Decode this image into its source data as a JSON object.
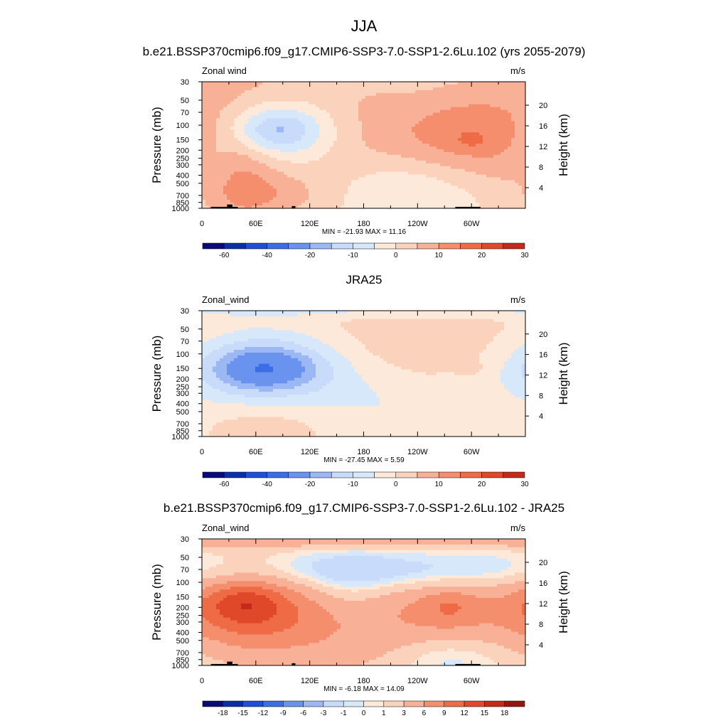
{
  "figure": {
    "title": "JJA",
    "season": "JJA"
  },
  "colors": {
    "blues": [
      "#0a0a7a",
      "#0c2fa8",
      "#1f4fd6",
      "#3a6de6",
      "#6a93ee",
      "#9bb8f4",
      "#c8dbfa"
    ],
    "pale_blue": "#d8e8fb",
    "pale_orange": "#fde9d9",
    "oranges": [
      "#fbd2bb",
      "#f8b197",
      "#f48e6c",
      "#ee6b45",
      "#e0482a",
      "#c42a1a",
      "#97150d",
      "#6b0a07"
    ],
    "orography": "#000000"
  },
  "chart_data": [
    {
      "type": "heatmap",
      "name": "model",
      "title": "b.e21.BSSP370cmip6.f09_g17.CMIP6-SSP3-7.0-SSP1-2.6Lu.102 (yrs 2055-2079)",
      "left_label": "Zonal wind",
      "units": "m/s",
      "xlabel": "",
      "ylabel": "Pressure (mb)",
      "ylabel_right": "Height (km)",
      "x_ticks": [
        "0",
        "60E",
        "120E",
        "180",
        "120W",
        "60W"
      ],
      "x_tick_lon": [
        0,
        60,
        120,
        180,
        240,
        300
      ],
      "xlim": [
        0,
        360
      ],
      "y_ticks": [
        "30",
        "50",
        "70",
        "100",
        "150",
        "200",
        "250",
        "300",
        "400",
        "500",
        "700",
        "850",
        "1000"
      ],
      "y_tick_p": [
        30,
        50,
        70,
        100,
        150,
        200,
        250,
        300,
        400,
        500,
        700,
        850,
        1000
      ],
      "ylim": [
        1000,
        30
      ],
      "log_pressure_axis": true,
      "height_ticks": [
        "4",
        "8",
        "12",
        "16",
        "20"
      ],
      "height_tick_km": [
        4,
        8,
        12,
        16,
        20
      ],
      "stats_text": "MIN = -21.93  MAX =  11.16",
      "min": -21.93,
      "max": 11.16,
      "colorbar_labels": [
        "-60",
        "-40",
        "-20",
        "-10",
        "0",
        "10",
        "20",
        "30"
      ],
      "colorbar_levels": [
        -70,
        -60,
        -50,
        -40,
        -30,
        -20,
        -15,
        -10,
        -5,
        0,
        5,
        10,
        15,
        20,
        25,
        30
      ],
      "features": [
        {
          "lon": 38,
          "p": 160,
          "dlon": 140,
          "dlogp": 0.55,
          "v": 7
        },
        {
          "lon": 80,
          "p": 115,
          "dlon": 55,
          "dlogp": 0.3,
          "v": -20
        },
        {
          "lon": 80,
          "p": 115,
          "dlon": 30,
          "dlogp": 0.16,
          "v": -8
        },
        {
          "lon": 70,
          "p": 50,
          "dlon": 90,
          "dlogp": 0.5,
          "v": 5
        },
        {
          "lon": 45,
          "p": 420,
          "dlon": 28,
          "dlogp": 0.5,
          "v": 6
        },
        {
          "lon": 80,
          "p": 700,
          "dlon": 45,
          "dlogp": 0.18,
          "v": 5
        },
        {
          "lon": 285,
          "p": 130,
          "dlon": 85,
          "dlogp": 0.35,
          "v": 8
        },
        {
          "lon": 300,
          "p": 150,
          "dlon": 12,
          "dlogp": 0.07,
          "v": 4
        },
        {
          "lon": 230,
          "p": 600,
          "dlon": 65,
          "dlogp": 0.3,
          "v": -7
        },
        {
          "lon": 10,
          "p": 280,
          "dlon": 18,
          "dlogp": 0.2,
          "v": -4
        }
      ],
      "orography": [
        {
          "lon0": 10,
          "lon1": 40,
          "p_top": 960
        },
        {
          "lon0": 28,
          "lon1": 34,
          "p_top": 900
        },
        {
          "lon0": 100,
          "lon1": 104,
          "p_top": 940
        },
        {
          "lon0": 282,
          "lon1": 310,
          "p_top": 960
        }
      ]
    },
    {
      "type": "heatmap",
      "name": "obs",
      "title": "JRA25",
      "left_label": "Zonal_wind",
      "units": "m/s",
      "xlabel": "",
      "ylabel": "Pressure (mb)",
      "ylabel_right": "Height (km)",
      "x_ticks": [
        "0",
        "60E",
        "120E",
        "180",
        "120W",
        "60W"
      ],
      "x_tick_lon": [
        0,
        60,
        120,
        180,
        240,
        300
      ],
      "xlim": [
        0,
        360
      ],
      "y_ticks": [
        "30",
        "50",
        "70",
        "100",
        "150",
        "200",
        "250",
        "300",
        "400",
        "500",
        "700",
        "850",
        "1000"
      ],
      "y_tick_p": [
        30,
        50,
        70,
        100,
        150,
        200,
        250,
        300,
        400,
        500,
        700,
        850,
        1000
      ],
      "ylim": [
        1000,
        30
      ],
      "log_pressure_axis": true,
      "height_ticks": [
        "4",
        "8",
        "12",
        "16",
        "20"
      ],
      "height_tick_km": [
        4,
        8,
        12,
        16,
        20
      ],
      "stats_text": "MIN = -27.45  MAX =   5.59",
      "min": -27.45,
      "max": 5.59,
      "colorbar_labels": [
        "-60",
        "-40",
        "-20",
        "-10",
        "0",
        "10",
        "20",
        "30"
      ],
      "colorbar_levels": [
        -70,
        -60,
        -50,
        -40,
        -30,
        -20,
        -15,
        -10,
        -5,
        0,
        5,
        10,
        15,
        20,
        25,
        30
      ],
      "features": [
        {
          "lon": 180,
          "p": 30,
          "dlon": 400,
          "dlogp": 0.06,
          "v": -6
        },
        {
          "lon": 70,
          "p": 155,
          "dlon": 60,
          "dlogp": 0.3,
          "v": -22
        },
        {
          "lon": 70,
          "p": 150,
          "dlon": 32,
          "dlogp": 0.14,
          "v": -10
        },
        {
          "lon": 240,
          "p": 110,
          "dlon": 90,
          "dlogp": 0.4,
          "v": 5
        },
        {
          "lon": 300,
          "p": 150,
          "dlon": 10,
          "dlogp": 0.06,
          "v": 3
        },
        {
          "lon": 70,
          "p": 600,
          "dlon": 50,
          "dlogp": 0.3,
          "v": 4
        },
        {
          "lon": 250,
          "p": 500,
          "dlon": 80,
          "dlogp": 0.5,
          "v": -4
        },
        {
          "lon": 200,
          "p": 300,
          "dlon": 60,
          "dlogp": 0.3,
          "v": -3
        }
      ],
      "orography": []
    },
    {
      "type": "heatmap",
      "name": "difference",
      "title": "b.e21.BSSP370cmip6.f09_g17.CMIP6-SSP3-7.0-SSP1-2.6Lu.102 - JRA25",
      "left_label": "Zonal_wind",
      "units": "m/s",
      "xlabel": "",
      "ylabel": "Pressure (mb)",
      "ylabel_right": "Height (km)",
      "x_ticks": [
        "0",
        "60E",
        "120E",
        "180",
        "120W",
        "60W"
      ],
      "x_tick_lon": [
        0,
        60,
        120,
        180,
        240,
        300
      ],
      "xlim": [
        0,
        360
      ],
      "y_ticks": [
        "30",
        "50",
        "70",
        "100",
        "150",
        "200",
        "250",
        "300",
        "400",
        "500",
        "700",
        "850",
        "1000"
      ],
      "y_tick_p": [
        30,
        50,
        70,
        100,
        150,
        200,
        250,
        300,
        400,
        500,
        700,
        850,
        1000
      ],
      "ylim": [
        1000,
        30
      ],
      "log_pressure_axis": true,
      "height_ticks": [
        "4",
        "8",
        "12",
        "16",
        "20"
      ],
      "height_tick_km": [
        4,
        8,
        12,
        16,
        20
      ],
      "stats_text": "MIN =  -6.18  MAX =  14.09",
      "min": -6.18,
      "max": 14.09,
      "colorbar_labels": [
        "-18",
        "-15",
        "-12",
        "-9",
        "-6",
        "-3",
        "-1",
        "0",
        "1",
        "3",
        "6",
        "9",
        "12",
        "15",
        "18"
      ],
      "colorbar_levels": [
        -21,
        -18,
        -15,
        -12,
        -9,
        -6,
        -3,
        -1,
        0,
        1,
        3,
        6,
        9,
        12,
        15,
        18,
        21
      ],
      "features": [
        {
          "lon": 180,
          "p": 30,
          "dlon": 400,
          "dlogp": 0.07,
          "v": 5
        },
        {
          "lon": 180,
          "p": 75,
          "dlon": 300,
          "dlogp": 0.18,
          "v": -5
        },
        {
          "lon": 60,
          "p": 190,
          "dlon": 55,
          "dlogp": 0.4,
          "v": 10
        },
        {
          "lon": 45,
          "p": 180,
          "dlon": 28,
          "dlogp": 0.17,
          "v": 4
        },
        {
          "lon": 270,
          "p": 200,
          "dlon": 75,
          "dlogp": 0.45,
          "v": 6
        },
        {
          "lon": 275,
          "p": 200,
          "dlon": 22,
          "dlogp": 0.15,
          "v": 3
        },
        {
          "lon": 150,
          "p": 450,
          "dlon": 70,
          "dlogp": 0.5,
          "v": 3
        },
        {
          "lon": 270,
          "p": 750,
          "dlon": 45,
          "dlogp": 0.2,
          "v": -3
        },
        {
          "lon": 160,
          "p": 150,
          "dlon": 40,
          "dlogp": 0.2,
          "v": -2
        }
      ],
      "orography": [
        {
          "lon0": 10,
          "lon1": 40,
          "p_top": 960
        },
        {
          "lon0": 28,
          "lon1": 34,
          "p_top": 900
        },
        {
          "lon0": 100,
          "lon1": 104,
          "p_top": 940
        },
        {
          "lon0": 282,
          "lon1": 310,
          "p_top": 960
        }
      ]
    }
  ]
}
